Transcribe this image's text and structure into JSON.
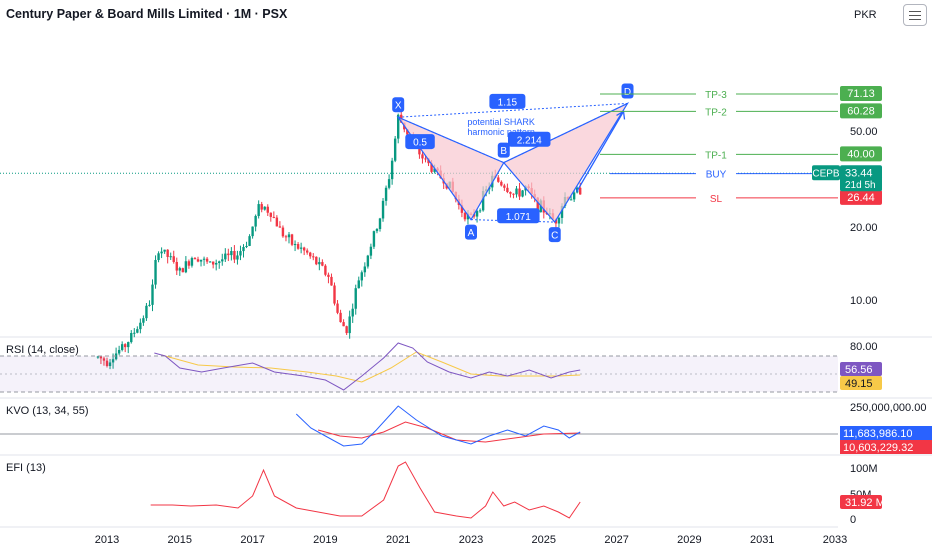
{
  "header": {
    "title": "Century Paper & Board Mills Limited · 1M · PSX",
    "currency": "PKR"
  },
  "panes": {
    "rsi_label": "RSI (14, close)",
    "kvo_label": "KVO (13, 34, 55)",
    "efi_label": "EFI (13)"
  },
  "colors": {
    "up": "#089981",
    "down": "#f23645",
    "pattern_fill": "#f8c8d0",
    "pattern_line": "#2962ff",
    "tp": "#4caf50",
    "sl": "#f23645",
    "rsi": "#7e57c2",
    "rsi_ma": "#f7c948",
    "kvo": "#2962ff",
    "kvo_signal": "#f23645",
    "efi": "#f23645"
  },
  "chart_data": [
    {
      "type": "candlestick",
      "title": "Century Paper & Board Mills Limited · 1M · PSX",
      "x_axis_ticks": [
        "2013",
        "2015",
        "2017",
        "2019",
        "2021",
        "2023",
        "2025",
        "2027",
        "2029",
        "2031",
        "2033"
      ],
      "y_axis_ticks": [
        "10.00",
        "20.00",
        "50.00"
      ],
      "y_scale": "log",
      "ylim": [
        5,
        80
      ],
      "price_path": [
        [
          2012.75,
          5.8
        ],
        [
          2013.0,
          5.6
        ],
        [
          2013.5,
          6.5
        ],
        [
          2013.9,
          8.0
        ],
        [
          2014.2,
          10.0
        ],
        [
          2014.4,
          16.5
        ],
        [
          2014.7,
          15.0
        ],
        [
          2015.0,
          13.0
        ],
        [
          2015.4,
          15.5
        ],
        [
          2015.8,
          14.0
        ],
        [
          2016.2,
          14.8
        ],
        [
          2016.6,
          15.5
        ],
        [
          2016.9,
          18.0
        ],
        [
          2017.2,
          25.0
        ],
        [
          2017.5,
          23.0
        ],
        [
          2017.8,
          19.0
        ],
        [
          2018.1,
          17.0
        ],
        [
          2018.4,
          16.0
        ],
        [
          2018.8,
          14.0
        ],
        [
          2019.1,
          12.5
        ],
        [
          2019.4,
          8.0
        ],
        [
          2019.6,
          7.6
        ],
        [
          2019.9,
          12.0
        ],
        [
          2020.2,
          16.0
        ],
        [
          2020.5,
          22.0
        ],
        [
          2020.8,
          35.0
        ],
        [
          2021.0,
          57.0
        ],
        [
          2021.3,
          48.0
        ],
        [
          2021.6,
          40.0
        ],
        [
          2022.0,
          34.0
        ],
        [
          2022.4,
          30.0
        ],
        [
          2022.7,
          24.0
        ],
        [
          2023.0,
          21.5
        ],
        [
          2023.3,
          26.0
        ],
        [
          2023.6,
          32.0
        ],
        [
          2023.9,
          30.0
        ],
        [
          2024.2,
          27.0
        ],
        [
          2024.5,
          29.0
        ],
        [
          2024.8,
          25.0
        ],
        [
          2025.1,
          23.0
        ],
        [
          2025.3,
          21.0
        ],
        [
          2025.6,
          27.0
        ],
        [
          2025.8,
          26.5
        ],
        [
          2026.0,
          29.0
        ]
      ],
      "last_price": "33.44",
      "ticker": "CEPB",
      "countdown": "21d 5h",
      "annotations": {
        "points": [
          {
            "label": "X",
            "x": 2021.0,
            "y": 57.0
          },
          {
            "label": "A",
            "x": 2023.0,
            "y": 21.5
          },
          {
            "label": "B",
            "x": 2023.9,
            "y": 37.0
          },
          {
            "label": "C",
            "x": 2025.3,
            "y": 21.0
          },
          {
            "label": "D",
            "x": 2027.3,
            "y": 65.0
          }
        ],
        "ratios": [
          "0.5",
          "1.15",
          "2.214",
          "1.071"
        ],
        "pattern_text": [
          "potential SHARK",
          "harmonic pattern"
        ],
        "levels": [
          {
            "label": "TP-3",
            "value": "71.13",
            "y": 71.13,
            "color": "#4caf50"
          },
          {
            "label": "TP-2",
            "value": "60.28",
            "y": 60.28,
            "color": "#4caf50"
          },
          {
            "label": "TP-1",
            "value": "40.00",
            "y": 40.0,
            "color": "#4caf50"
          },
          {
            "label": "BUY",
            "value": "33.31",
            "y": 33.31,
            "color": "#2962ff"
          },
          {
            "label": "SL",
            "value": "26.44",
            "y": 26.44,
            "color": "#f23645"
          }
        ]
      }
    },
    {
      "type": "line",
      "title": "RSI (14, close)",
      "y_axis_ticks": [
        "80.00"
      ],
      "series": [
        {
          "name": "RSI",
          "last": "56.56"
        },
        {
          "name": "RSI MA",
          "last": "49.15"
        }
      ]
    },
    {
      "type": "line",
      "title": "KVO (13, 34, 55)",
      "y_axis_ticks": [
        "250,000,000.00"
      ],
      "series": [
        {
          "name": "KVO",
          "last": "11,683,986.10"
        },
        {
          "name": "Signal",
          "last": "10,603,229.32"
        }
      ]
    },
    {
      "type": "line",
      "title": "EFI (13)",
      "y_axis_ticks": [
        "100M",
        "50M",
        "0"
      ],
      "series": [
        {
          "name": "EFI",
          "last": "31.92 M"
        }
      ]
    }
  ]
}
